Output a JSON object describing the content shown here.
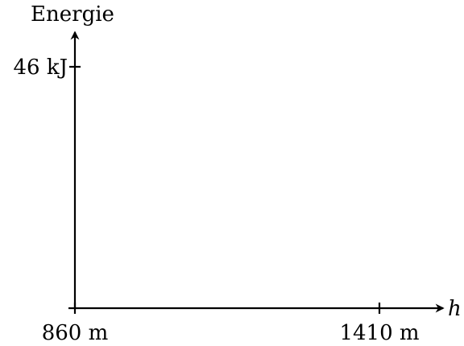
{
  "chart_data": {
    "type": "line",
    "ylabel": "Energie",
    "xlabel": "h",
    "x_ticks": [
      {
        "value": 860,
        "label": "860 m"
      },
      {
        "value": 1410,
        "label": "1410 m"
      }
    ],
    "y_ticks": [
      {
        "value": 46,
        "label": "46 kJ"
      }
    ],
    "xlim": [
      860,
      1410
    ],
    "ylim": [
      0,
      46
    ],
    "series": [],
    "grid": false,
    "legend": "none"
  }
}
